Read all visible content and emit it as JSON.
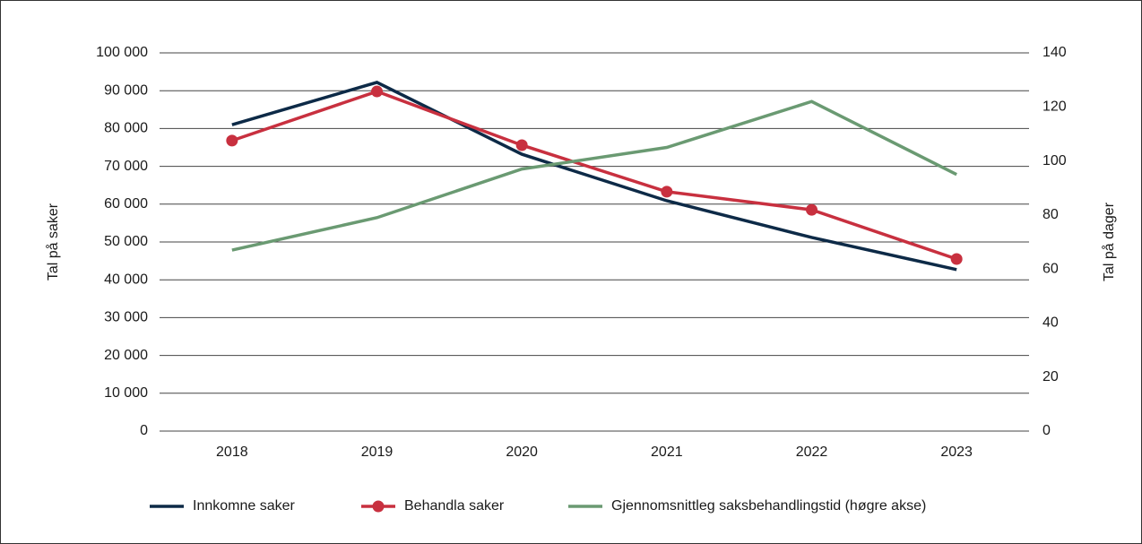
{
  "chart_data": {
    "type": "line",
    "categories": [
      "2018",
      "2019",
      "2020",
      "2021",
      "2022",
      "2023"
    ],
    "series": [
      {
        "name": "Innkomne saker",
        "color": "#0d2a47",
        "values": [
          81000,
          92200,
          73200,
          60900,
          51200,
          42700
        ]
      },
      {
        "name": "Behandla saker",
        "color": "#c8303f",
        "marker": "circle",
        "values": [
          76800,
          89800,
          75600,
          63300,
          58500,
          45500
        ]
      },
      {
        "name": "Gjennomsnittleg saksbehandlingstid (høgre akse)",
        "color": "#6a9a72",
        "axis": "y2",
        "values": [
          67,
          79,
          97,
          105,
          122,
          95
        ]
      }
    ],
    "ylabel": "Tal på saker",
    "y2label": "Tal på dager",
    "ylim": [
      0,
      100000
    ],
    "yticks": [
      0,
      {
        "value": 10000,
        "label": "10 000"
      },
      {
        "value": 20000,
        "label": "20 000"
      },
      {
        "value": 30000,
        "label": "30 000"
      },
      {
        "value": 40000,
        "label": "40 000"
      },
      {
        "value": 50000,
        "label": "50 000"
      },
      {
        "value": 60000,
        "label": "60 000"
      },
      {
        "value": 70000,
        "label": "70 000"
      },
      {
        "value": 80000,
        "label": "80 000"
      },
      {
        "value": 90000,
        "label": "90 000"
      },
      {
        "value": 100000,
        "label": "100 000"
      }
    ],
    "y2lim": [
      0,
      140
    ],
    "y2ticks": [
      0,
      20,
      40,
      60,
      80,
      100,
      120,
      140
    ],
    "grid": true,
    "legend": "bottom"
  }
}
